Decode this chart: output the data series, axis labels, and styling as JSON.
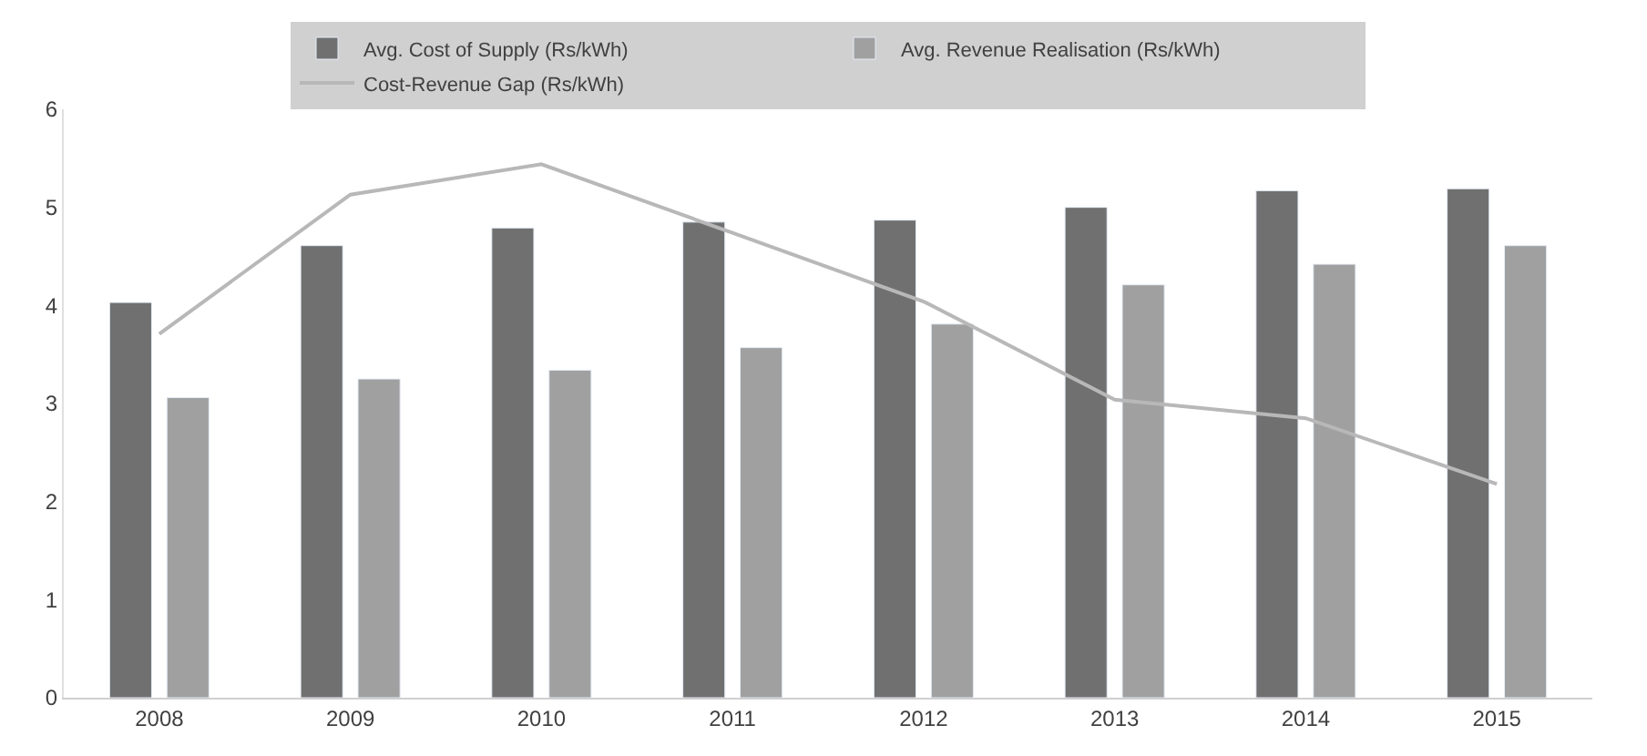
{
  "chart_data": {
    "type": "bar",
    "categories": [
      "2008",
      "2009",
      "2010",
      "2011",
      "2012",
      "2013",
      "2014",
      "2015"
    ],
    "series": [
      {
        "name": "Avg. Cost of Supply (Rs/kWh)",
        "color": "#707070",
        "values": [
          4.03,
          4.61,
          4.79,
          4.85,
          4.87,
          5.0,
          5.17,
          5.19
        ]
      },
      {
        "name": "Avg. Revenue Realisation (Rs/kWh)",
        "color": "#a0a0a0",
        "values": [
          3.06,
          3.25,
          3.34,
          3.57,
          3.81,
          4.21,
          4.42,
          4.61
        ]
      },
      {
        "name": "Cost-Revenue Gap (Rs/kWh)",
        "type": "line",
        "color": "#b8b8b8",
        "values": [
          3.71,
          5.13,
          5.44,
          4.74,
          4.04,
          3.04,
          2.85,
          2.18
        ]
      }
    ],
    "ylim": [
      0,
      6
    ],
    "yticks": [
      0,
      1,
      2,
      3,
      4,
      5,
      6
    ],
    "legend": "top",
    "marker": "none"
  }
}
